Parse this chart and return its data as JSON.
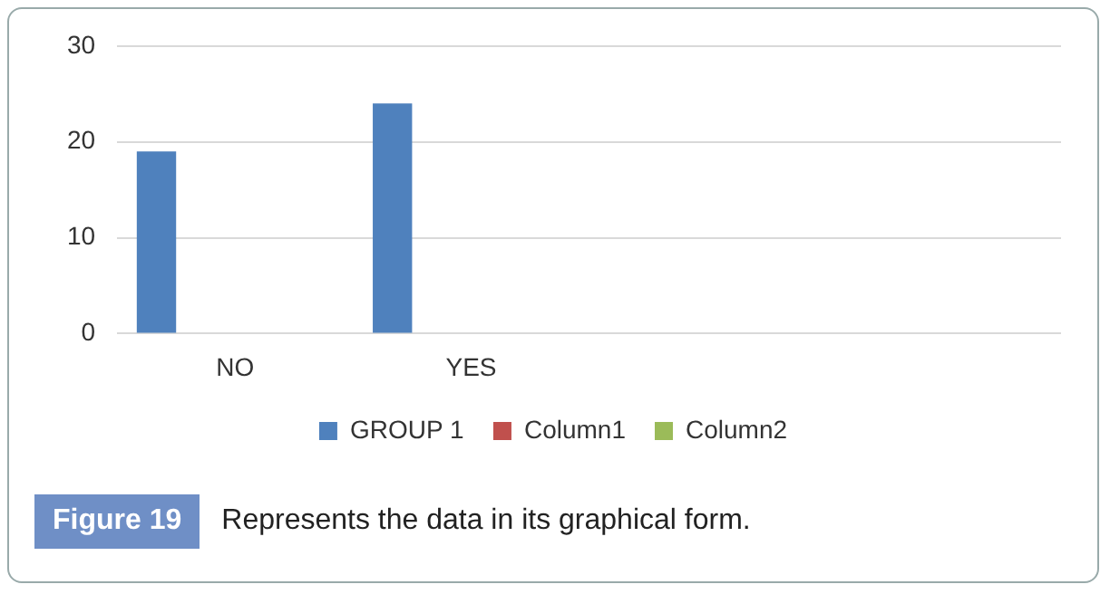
{
  "chart_data": {
    "type": "bar",
    "categories": [
      "NO",
      "YES",
      null,
      null
    ],
    "series": [
      {
        "name": "GROUP 1",
        "color": "#4f81bd",
        "values": [
          19,
          24,
          null,
          null
        ]
      },
      {
        "name": "Column1",
        "color": "#c0504d",
        "values": [
          null,
          null,
          null,
          null
        ]
      },
      {
        "name": "Column2",
        "color": "#9bbb59",
        "values": [
          null,
          null,
          null,
          null
        ]
      }
    ],
    "ylim": [
      0,
      30
    ],
    "yticks": [
      0,
      10,
      20,
      30
    ],
    "grid": "y",
    "legend": "bottom",
    "annotations": [
      "Figure 19",
      "Represents the data in its graphical form."
    ]
  }
}
